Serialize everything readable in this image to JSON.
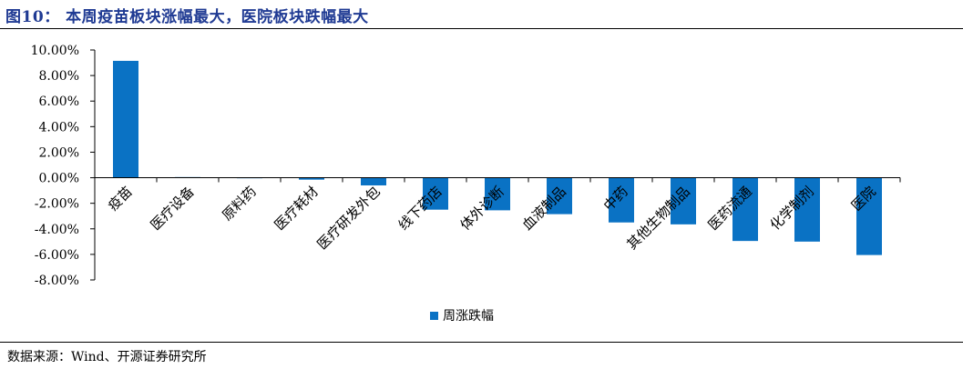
{
  "figure": {
    "title": "图10： 本周疫苗板块涨幅最大，医院板块跌幅最大",
    "source": "数据来源：Wind、开源证券研究所"
  },
  "chart_data": {
    "type": "bar",
    "categories": [
      "疫苗",
      "医疗设备",
      "原料药",
      "医疗耗材",
      "医疗研发外包",
      "线下药店",
      "体外诊断",
      "血液制品",
      "中药",
      "其他生物制品",
      "医药流通",
      "化学制剂",
      "医院"
    ],
    "series": [
      {
        "name": "周涨跌幅",
        "values": [
          9.15,
          0.05,
          0.0,
          -0.15,
          -0.6,
          -2.5,
          -2.55,
          -2.85,
          -3.5,
          -3.65,
          -4.95,
          -5.0,
          -6.05
        ],
        "color": "#0a72c4"
      }
    ],
    "yticks": [
      "10.00%",
      "8.00%",
      "6.00%",
      "4.00%",
      "2.00%",
      "0.00%",
      "-2.00%",
      "-4.00%",
      "-6.00%",
      "-8.00%"
    ],
    "ylim": [
      -8,
      10
    ],
    "xlabel": "",
    "ylabel": "",
    "grid": false,
    "legend_position": "bottom"
  }
}
